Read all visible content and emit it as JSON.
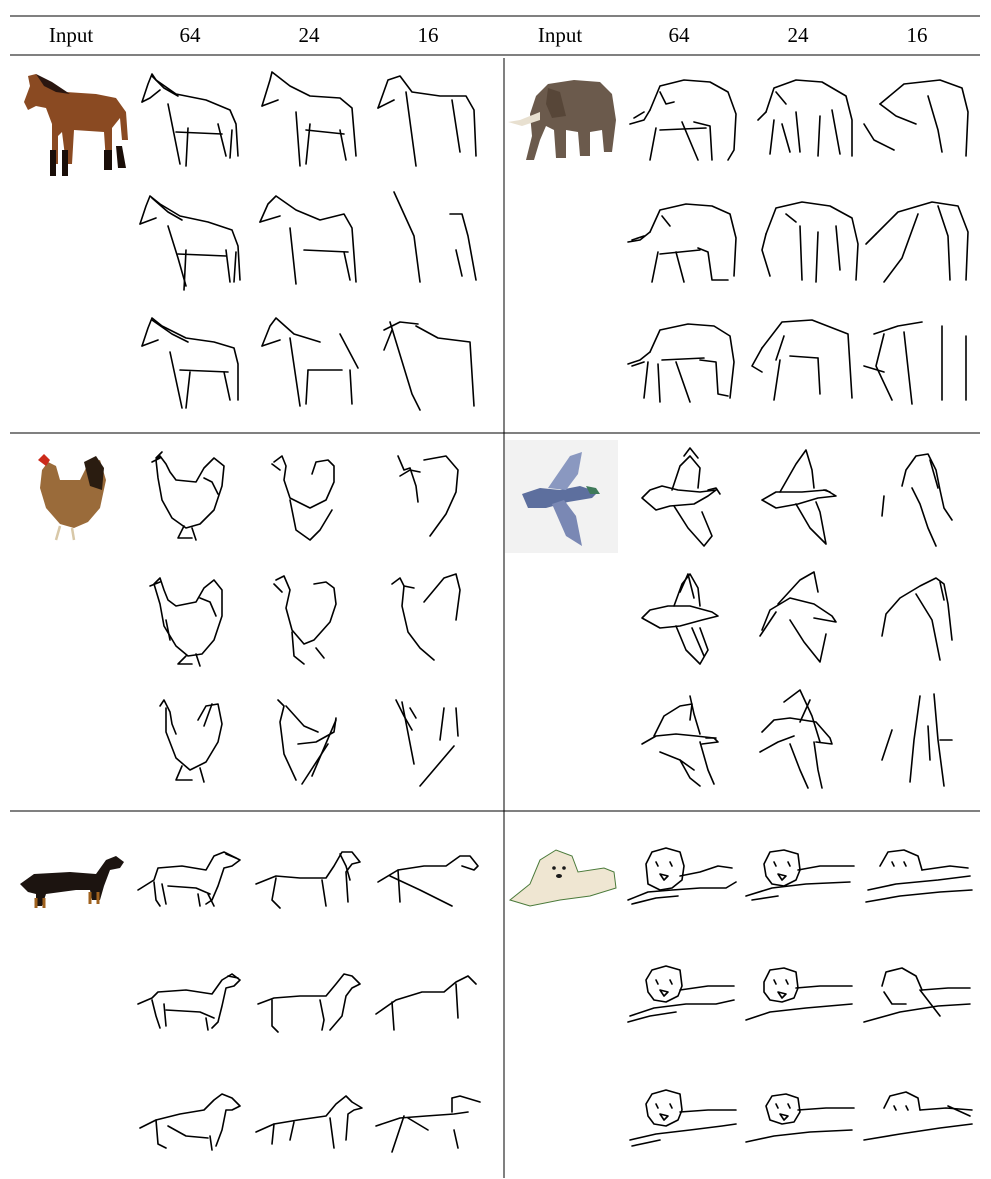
{
  "table": {
    "headers": [
      "Input",
      "64",
      "24",
      "16",
      "Input",
      "64",
      "24",
      "16"
    ]
  },
  "panels": [
    {
      "subject": "horse",
      "icon": "horse-photo-icon",
      "row_labels": []
    },
    {
      "subject": "elephant",
      "icon": "elephant-photo-icon",
      "row_labels": []
    },
    {
      "subject": "chicken",
      "icon": "chicken-photo-icon",
      "row_labels": []
    },
    {
      "subject": "pigeon",
      "icon": "pigeon-photo-icon",
      "row_labels": []
    },
    {
      "subject": "dachshund",
      "icon": "dachshund-photo-icon",
      "row_labels": []
    },
    {
      "subject": "retriever",
      "icon": "retriever-photo-icon",
      "row_labels": []
    }
  ],
  "colors": {
    "rule": "#000000",
    "horse": "#8a4a22",
    "elephant": "#6b5a4c",
    "chicken": "#9a6b3a",
    "pigeon": "#5d6f9e",
    "dachshund": "#1c1410",
    "retriever": "#efe6d2"
  }
}
